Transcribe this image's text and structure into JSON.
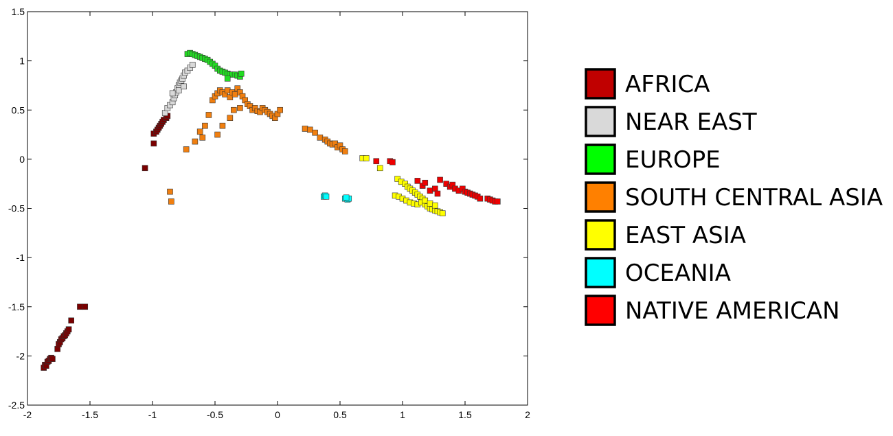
{
  "chart_data": {
    "type": "scatter",
    "title": "",
    "xlabel": "",
    "ylabel": "",
    "xlim": [
      -2,
      2
    ],
    "ylim": [
      -2.5,
      1.5
    ],
    "x_ticks": [
      -2,
      -1.5,
      -1,
      -0.5,
      0,
      0.5,
      1,
      1.5,
      2
    ],
    "x_tick_labels": [
      "-2",
      "-1.5",
      "-1",
      "-0.5",
      "0",
      "0.5",
      "1",
      "1.5",
      "2"
    ],
    "y_ticks": [
      1.5,
      1,
      0.5,
      0,
      -0.5,
      -1,
      -1.5,
      -2,
      -2.5
    ],
    "y_tick_labels": [
      "1.5",
      "1",
      "0.5",
      "0",
      "-0.5",
      "-1",
      "-1.5",
      "-2",
      "-2.5"
    ],
    "grid": false,
    "legend_position": "right",
    "marker": "square",
    "series": [
      {
        "name": "AFRICA",
        "color": "#c00000",
        "marker_color": "#7a0000",
        "points": [
          [
            -1.87,
            -2.12
          ],
          [
            -1.86,
            -2.09
          ],
          [
            -1.85,
            -2.1
          ],
          [
            -1.84,
            -2.06
          ],
          [
            -1.83,
            -2.05
          ],
          [
            -1.82,
            -2.03
          ],
          [
            -1.81,
            -2.02
          ],
          [
            -1.8,
            -2.03
          ],
          [
            -1.76,
            -1.93
          ],
          [
            -1.75,
            -1.88
          ],
          [
            -1.74,
            -1.86
          ],
          [
            -1.73,
            -1.83
          ],
          [
            -1.72,
            -1.82
          ],
          [
            -1.71,
            -1.8
          ],
          [
            -1.7,
            -1.79
          ],
          [
            -1.69,
            -1.77
          ],
          [
            -1.68,
            -1.75
          ],
          [
            -1.67,
            -1.73
          ],
          [
            -1.65,
            -1.64
          ],
          [
            -1.58,
            -1.5
          ],
          [
            -1.54,
            -1.5
          ],
          [
            -1.06,
            -0.09
          ],
          [
            -0.99,
            0.16
          ],
          [
            -0.99,
            0.26
          ],
          [
            -0.97,
            0.28
          ],
          [
            -0.96,
            0.3
          ],
          [
            -0.95,
            0.32
          ],
          [
            -0.94,
            0.34
          ],
          [
            -0.93,
            0.36
          ],
          [
            -0.92,
            0.38
          ],
          [
            -0.91,
            0.4
          ],
          [
            -0.89,
            0.42
          ],
          [
            -0.88,
            0.44
          ]
        ]
      },
      {
        "name": "NEAR EAST",
        "color": "#d9d9d9",
        "marker_color": "#d9d9d9",
        "points": [
          [
            -0.9,
            0.47
          ],
          [
            -0.88,
            0.52
          ],
          [
            -0.86,
            0.55
          ],
          [
            -0.84,
            0.58
          ],
          [
            -0.83,
            0.62
          ],
          [
            -0.82,
            0.65
          ],
          [
            -0.81,
            0.68
          ],
          [
            -0.8,
            0.72
          ],
          [
            -0.79,
            0.75
          ],
          [
            -0.78,
            0.78
          ],
          [
            -0.77,
            0.8
          ],
          [
            -0.76,
            0.82
          ],
          [
            -0.75,
            0.85
          ],
          [
            -0.74,
            0.88
          ],
          [
            -0.72,
            0.9
          ],
          [
            -0.7,
            0.93
          ],
          [
            -0.68,
            0.96
          ],
          [
            -0.79,
            0.7
          ],
          [
            -0.84,
            0.67
          ],
          [
            -0.75,
            0.74
          ]
        ]
      },
      {
        "name": "EUROPE",
        "color": "#00ff00",
        "marker_color": "#22dd22",
        "points": [
          [
            -0.72,
            1.07
          ],
          [
            -0.7,
            1.08
          ],
          [
            -0.68,
            1.07
          ],
          [
            -0.66,
            1.06
          ],
          [
            -0.64,
            1.05
          ],
          [
            -0.62,
            1.04
          ],
          [
            -0.6,
            1.03
          ],
          [
            -0.58,
            1.02
          ],
          [
            -0.56,
            1.01
          ],
          [
            -0.54,
            0.99
          ],
          [
            -0.52,
            0.97
          ],
          [
            -0.5,
            0.95
          ],
          [
            -0.48,
            0.92
          ],
          [
            -0.46,
            0.9
          ],
          [
            -0.44,
            0.89
          ],
          [
            -0.42,
            0.88
          ],
          [
            -0.4,
            0.87
          ],
          [
            -0.38,
            0.86
          ],
          [
            -0.36,
            0.86
          ],
          [
            -0.34,
            0.86
          ],
          [
            -0.32,
            0.85
          ],
          [
            -0.3,
            0.84
          ],
          [
            -0.29,
            0.87
          ],
          [
            -0.4,
            0.82
          ]
        ]
      },
      {
        "name": "SOUTH CENTRAL ASIA",
        "color": "#ff8000",
        "marker_color": "#f07f10",
        "points": [
          [
            -0.86,
            -0.33
          ],
          [
            -0.85,
            -0.43
          ],
          [
            -0.73,
            0.1
          ],
          [
            -0.66,
            0.18
          ],
          [
            -0.62,
            0.28
          ],
          [
            -0.6,
            0.22
          ],
          [
            -0.58,
            0.34
          ],
          [
            -0.55,
            0.45
          ],
          [
            -0.48,
            0.25
          ],
          [
            -0.44,
            0.34
          ],
          [
            -0.38,
            0.42
          ],
          [
            -0.35,
            0.5
          ],
          [
            -0.3,
            0.52
          ],
          [
            -0.52,
            0.6
          ],
          [
            -0.5,
            0.64
          ],
          [
            -0.48,
            0.67
          ],
          [
            -0.46,
            0.7
          ],
          [
            -0.44,
            0.68
          ],
          [
            -0.42,
            0.66
          ],
          [
            -0.4,
            0.7
          ],
          [
            -0.38,
            0.63
          ],
          [
            -0.36,
            0.68
          ],
          [
            -0.34,
            0.66
          ],
          [
            -0.32,
            0.72
          ],
          [
            -0.3,
            0.68
          ],
          [
            -0.28,
            0.64
          ],
          [
            -0.26,
            0.6
          ],
          [
            -0.24,
            0.56
          ],
          [
            -0.22,
            0.54
          ],
          [
            -0.2,
            0.5
          ],
          [
            -0.18,
            0.52
          ],
          [
            -0.16,
            0.49
          ],
          [
            -0.14,
            0.48
          ],
          [
            -0.12,
            0.52
          ],
          [
            -0.1,
            0.5
          ],
          [
            -0.08,
            0.48
          ],
          [
            -0.06,
            0.46
          ],
          [
            -0.04,
            0.44
          ],
          [
            -0.02,
            0.42
          ],
          [
            0.0,
            0.46
          ],
          [
            0.02,
            0.5
          ],
          [
            0.22,
            0.31
          ],
          [
            0.26,
            0.3
          ],
          [
            0.3,
            0.27
          ],
          [
            0.34,
            0.22
          ],
          [
            0.38,
            0.2
          ],
          [
            0.4,
            0.18
          ],
          [
            0.42,
            0.16
          ],
          [
            0.44,
            0.15
          ],
          [
            0.46,
            0.16
          ],
          [
            0.48,
            0.12
          ],
          [
            0.5,
            0.14
          ],
          [
            0.52,
            0.1
          ],
          [
            0.54,
            0.08
          ]
        ]
      },
      {
        "name": "EAST ASIA",
        "color": "#ffff00",
        "marker_color": "#ffff00",
        "points": [
          [
            0.68,
            0.01
          ],
          [
            0.71,
            0.01
          ],
          [
            0.82,
            -0.09
          ],
          [
            0.96,
            -0.2
          ],
          [
            0.99,
            -0.23
          ],
          [
            1.02,
            -0.25
          ],
          [
            1.04,
            -0.28
          ],
          [
            1.06,
            -0.3
          ],
          [
            1.08,
            -0.32
          ],
          [
            1.1,
            -0.34
          ],
          [
            1.12,
            -0.36
          ],
          [
            1.14,
            -0.38
          ],
          [
            1.16,
            -0.4
          ],
          [
            0.94,
            -0.37
          ],
          [
            0.97,
            -0.38
          ],
          [
            1.0,
            -0.4
          ],
          [
            1.03,
            -0.42
          ],
          [
            1.06,
            -0.44
          ],
          [
            1.09,
            -0.45
          ],
          [
            1.12,
            -0.46
          ],
          [
            1.15,
            -0.44
          ],
          [
            1.18,
            -0.46
          ],
          [
            1.2,
            -0.48
          ],
          [
            1.22,
            -0.5
          ],
          [
            1.24,
            -0.51
          ],
          [
            1.26,
            -0.52
          ],
          [
            1.28,
            -0.53
          ],
          [
            1.3,
            -0.54
          ],
          [
            1.32,
            -0.55
          ],
          [
            1.18,
            -0.42
          ],
          [
            1.22,
            -0.45
          ],
          [
            1.26,
            -0.47
          ]
        ]
      },
      {
        "name": "OCEANIA",
        "color": "#00ffff",
        "marker_color": "#00ffff",
        "points": [
          [
            0.37,
            -0.38
          ],
          [
            0.38,
            -0.37
          ],
          [
            0.39,
            -0.38
          ],
          [
            0.54,
            -0.4
          ],
          [
            0.56,
            -0.41
          ],
          [
            0.57,
            -0.4
          ],
          [
            0.55,
            -0.39
          ]
        ]
      },
      {
        "name": "NATIVE AMERICAN",
        "color": "#ff0000",
        "marker_color": "#ee0000",
        "points": [
          [
            0.79,
            -0.02
          ],
          [
            0.9,
            -0.02
          ],
          [
            0.92,
            -0.03
          ],
          [
            1.12,
            -0.22
          ],
          [
            1.16,
            -0.27
          ],
          [
            1.18,
            -0.24
          ],
          [
            1.22,
            -0.32
          ],
          [
            1.26,
            -0.3
          ],
          [
            1.28,
            -0.35
          ],
          [
            1.3,
            -0.21
          ],
          [
            1.35,
            -0.25
          ],
          [
            1.38,
            -0.28
          ],
          [
            1.4,
            -0.26
          ],
          [
            1.42,
            -0.3
          ],
          [
            1.45,
            -0.32
          ],
          [
            1.48,
            -0.3
          ],
          [
            1.5,
            -0.33
          ],
          [
            1.52,
            -0.34
          ],
          [
            1.54,
            -0.35
          ],
          [
            1.56,
            -0.36
          ],
          [
            1.58,
            -0.37
          ],
          [
            1.6,
            -0.38
          ],
          [
            1.62,
            -0.4
          ],
          [
            1.68,
            -0.4
          ],
          [
            1.7,
            -0.41
          ],
          [
            1.72,
            -0.42
          ],
          [
            1.74,
            -0.43
          ],
          [
            1.76,
            -0.43
          ]
        ]
      }
    ]
  }
}
